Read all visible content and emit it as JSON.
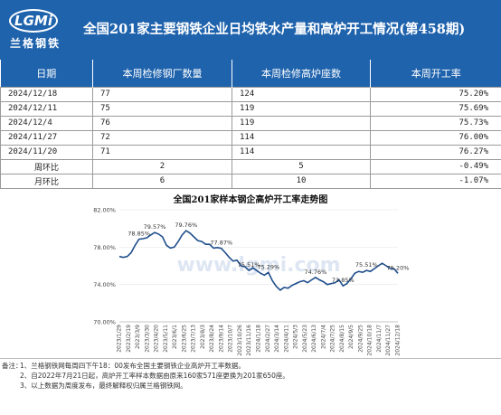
{
  "header": {
    "logo_text": "LGMi",
    "logo_cn": "兰格钢铁",
    "title": "全国201家主要钢铁企业日均铁水产量和高炉开工情况(第458期)"
  },
  "table": {
    "columns": [
      "日期",
      "本周检修钢厂数量",
      "本周检修高炉座数",
      "本周开工率"
    ],
    "rows": [
      {
        "date": "2024/12/18",
        "mills": "77",
        "furnaces": "124",
        "rate": "75.20%"
      },
      {
        "date": "2024/12/11",
        "mills": "75",
        "furnaces": "119",
        "rate": "75.69%"
      },
      {
        "date": "2024/12/4",
        "mills": "76",
        "furnaces": "119",
        "rate": "75.73%"
      },
      {
        "date": "2024/11/27",
        "mills": "72",
        "furnaces": "114",
        "rate": "76.00%"
      },
      {
        "date": "2024/11/20",
        "mills": "71",
        "furnaces": "114",
        "rate": "76.27%"
      }
    ],
    "wow": {
      "label": "周环比",
      "mills": "2",
      "furnaces": "5",
      "rate": "-0.49%"
    },
    "mom": {
      "label": "月环比",
      "mills": "6",
      "furnaces": "10",
      "rate": "-1.07%"
    }
  },
  "colors": {
    "header_blue": "#1f63ad",
    "line": "#1f4e8c",
    "increase": "#e0201f",
    "decrease": "#1d9a3c"
  },
  "chart_data": {
    "type": "line",
    "title": "全国201家样本钢企高炉开工率走势图",
    "watermark": "www.lgmi.com",
    "ylim": [
      70,
      82
    ],
    "yticks": [
      "70.00%",
      "74.00%",
      "78.00%",
      "82.00%"
    ],
    "xticks": [
      "2023/1/29",
      "2023/2/19",
      "2023/3/9",
      "2023/3/30",
      "2023/4/20",
      "2023/5/11",
      "2023/6/1",
      "2023/6/25",
      "2023/7/13",
      "2023/8/3",
      "2023/8/24",
      "2023/9/14",
      "2023/10/7",
      "2023/10/26",
      "2023/11/16",
      "2024/1/18",
      "2024/2/27",
      "2024/3/14",
      "2024/4/11",
      "2024/5/3",
      "2024/5/23",
      "2024/6/13",
      "2024/7/4",
      "2024/7/25",
      "2024/8/15",
      "2024/9/5",
      "2024/9/25",
      "2024/10/18",
      "2024/11/7",
      "2024/11/27",
      "2024/12/18"
    ],
    "series": [
      {
        "values": [
          77.0,
          76.9,
          77.0,
          77.4,
          78.2,
          78.85,
          78.9,
          79.0,
          79.3,
          79.57,
          79.4,
          79.1,
          78.2,
          77.9,
          78.0,
          78.6,
          79.3,
          79.76,
          79.5,
          79.1,
          78.7,
          78.6,
          78.3,
          78.3,
          77.9,
          77.95,
          77.87,
          77.4,
          76.9,
          76.5,
          76.6,
          76.0,
          75.9,
          75.51,
          75.8,
          75.5,
          75.2,
          75.0,
          75.29,
          74.4,
          73.8,
          73.4,
          73.7,
          73.6,
          73.9,
          74.1,
          74.3,
          74.4,
          74.2,
          74.5,
          74.76,
          74.5,
          74.3,
          74.0,
          74.1,
          74.2,
          74.5,
          73.85,
          74.1,
          74.6,
          75.2,
          75.4,
          75.3,
          75.51,
          75.4,
          75.7,
          76.0,
          76.27,
          76.0,
          75.73,
          75.69,
          75.2
        ]
      }
    ],
    "annotations": [
      {
        "index": 5,
        "label": "78.85%"
      },
      {
        "index": 9,
        "label": "79.57%"
      },
      {
        "index": 17,
        "label": "79.76%"
      },
      {
        "index": 26,
        "label": "77.87%"
      },
      {
        "index": 33,
        "label": "75.51%"
      },
      {
        "index": 38,
        "label": "75.29%"
      },
      {
        "index": 50,
        "label": "74.76%"
      },
      {
        "index": 57,
        "label": "73.85%"
      },
      {
        "index": 63,
        "label": "75.51%"
      },
      {
        "index": 71,
        "label": "75.20%"
      }
    ]
  },
  "notes": {
    "prefix": "备注：",
    "lines": [
      "1、兰格钢铁网每周四下午18：00发布全国主要钢铁企业高炉开工率数据。",
      "2、自2022年7月21日起，高炉开工率样本数据由原来160家571座更换为201家650座。",
      "3、以上数据为周度发布，最终解释权归属兰格钢铁网。"
    ]
  }
}
